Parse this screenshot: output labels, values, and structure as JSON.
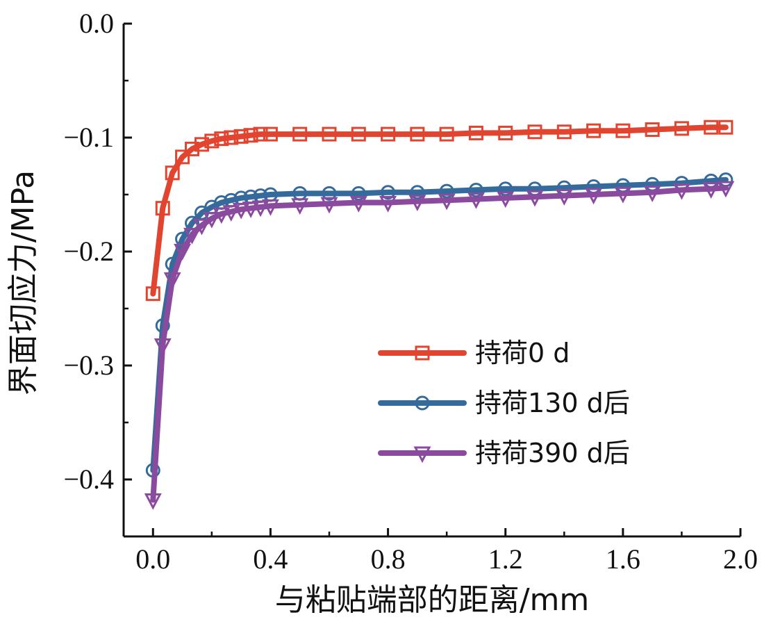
{
  "chart_data": {
    "type": "line",
    "xlabel": "与粘贴端部的距离/mm",
    "ylabel": "界面切应力/MPa",
    "xlim": [
      -0.1,
      2.0
    ],
    "ylim": [
      -0.45,
      0.0
    ],
    "xticks": [
      0.0,
      0.4,
      0.8,
      1.2,
      1.6,
      2.0
    ],
    "xtick_labels": [
      "0.0",
      "0.4",
      "0.8",
      "1.2",
      "1.6",
      "2.0"
    ],
    "yticks": [
      0.0,
      -0.1,
      -0.2,
      -0.3,
      -0.4
    ],
    "ytick_labels": [
      "0.0",
      "−0.1",
      "−0.2",
      "−0.3",
      "−0.4"
    ],
    "grid": false,
    "legend_position": "bottom-right",
    "series": [
      {
        "name": "持荷0 d",
        "color": "#e2452f",
        "marker": "square",
        "x": [
          0.0,
          0.033,
          0.066,
          0.1,
          0.133,
          0.166,
          0.2,
          0.233,
          0.266,
          0.3,
          0.333,
          0.366,
          0.4,
          0.5,
          0.6,
          0.7,
          0.8,
          0.9,
          1.0,
          1.1,
          1.2,
          1.3,
          1.4,
          1.5,
          1.6,
          1.7,
          1.8,
          1.9,
          1.95
        ],
        "y": [
          -0.237,
          -0.162,
          -0.131,
          -0.117,
          -0.11,
          -0.106,
          -0.103,
          -0.101,
          -0.1,
          -0.099,
          -0.098,
          -0.097,
          -0.097,
          -0.097,
          -0.097,
          -0.097,
          -0.097,
          -0.097,
          -0.097,
          -0.096,
          -0.096,
          -0.095,
          -0.095,
          -0.094,
          -0.094,
          -0.093,
          -0.092,
          -0.091,
          -0.091
        ]
      },
      {
        "name": "持荷130 d后",
        "color": "#356b9c",
        "marker": "circle",
        "x": [
          0.0,
          0.033,
          0.066,
          0.1,
          0.133,
          0.166,
          0.2,
          0.233,
          0.266,
          0.3,
          0.333,
          0.366,
          0.4,
          0.5,
          0.6,
          0.7,
          0.8,
          0.9,
          1.0,
          1.1,
          1.2,
          1.3,
          1.4,
          1.5,
          1.6,
          1.7,
          1.8,
          1.9,
          1.95
        ],
        "y": [
          -0.392,
          -0.265,
          -0.211,
          -0.189,
          -0.175,
          -0.166,
          -0.161,
          -0.157,
          -0.155,
          -0.153,
          -0.152,
          -0.151,
          -0.15,
          -0.149,
          -0.149,
          -0.149,
          -0.148,
          -0.148,
          -0.147,
          -0.146,
          -0.145,
          -0.145,
          -0.144,
          -0.143,
          -0.142,
          -0.141,
          -0.14,
          -0.138,
          -0.137
        ]
      },
      {
        "name": "持荷390 d后",
        "color": "#8a4a9e",
        "marker": "triangle-down",
        "x": [
          0.0,
          0.033,
          0.066,
          0.1,
          0.133,
          0.166,
          0.2,
          0.233,
          0.266,
          0.3,
          0.333,
          0.366,
          0.4,
          0.5,
          0.6,
          0.7,
          0.8,
          0.9,
          1.0,
          1.1,
          1.2,
          1.3,
          1.4,
          1.5,
          1.6,
          1.7,
          1.8,
          1.9,
          1.95
        ],
        "y": [
          -0.418,
          -0.282,
          -0.224,
          -0.199,
          -0.185,
          -0.177,
          -0.171,
          -0.167,
          -0.165,
          -0.163,
          -0.162,
          -0.161,
          -0.16,
          -0.159,
          -0.158,
          -0.157,
          -0.157,
          -0.156,
          -0.155,
          -0.154,
          -0.153,
          -0.152,
          -0.151,
          -0.15,
          -0.149,
          -0.148,
          -0.146,
          -0.145,
          -0.144
        ]
      }
    ]
  }
}
